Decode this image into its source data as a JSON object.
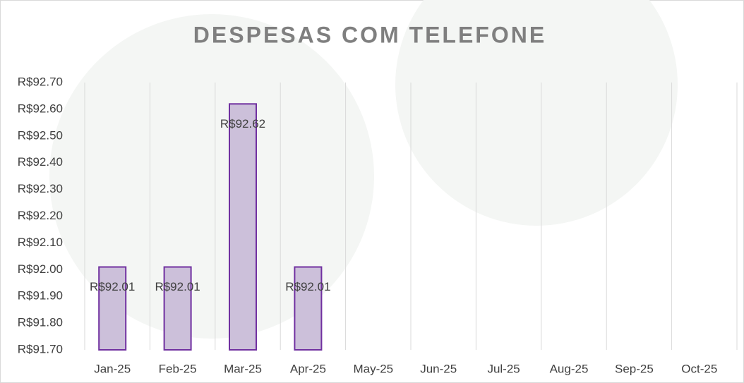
{
  "chart_data": {
    "type": "bar",
    "title": "DESPESAS COM TELEFONE",
    "categories": [
      "Jan-25",
      "Feb-25",
      "Mar-25",
      "Apr-25",
      "May-25",
      "Jun-25",
      "Jul-25",
      "Aug-25",
      "Sep-25",
      "Oct-25"
    ],
    "values": [
      92.01,
      92.01,
      92.62,
      92.01,
      null,
      null,
      null,
      null,
      null,
      null
    ],
    "value_labels": [
      "R$92.01",
      "R$92.01",
      "R$92.62",
      "R$92.01",
      null,
      null,
      null,
      null,
      null,
      null
    ],
    "color": "#ccc0da",
    "edge_color": "#7030a0",
    "ylim": [
      91.7,
      92.7
    ],
    "yticks": [
      {
        "value": 91.7,
        "label": "R$91.70"
      },
      {
        "value": 91.8,
        "label": "R$91.80"
      },
      {
        "value": 91.9,
        "label": "R$91.90"
      },
      {
        "value": 92.0,
        "label": "R$92.00"
      },
      {
        "value": 92.1,
        "label": "R$92.10"
      },
      {
        "value": 92.2,
        "label": "R$92.20"
      },
      {
        "value": 92.3,
        "label": "R$92.30"
      },
      {
        "value": 92.4,
        "label": "R$92.40"
      },
      {
        "value": 92.5,
        "label": "R$92.50"
      },
      {
        "value": 92.6,
        "label": "R$92.60"
      },
      {
        "value": 92.7,
        "label": "R$92.70"
      }
    ],
    "grid": true
  }
}
